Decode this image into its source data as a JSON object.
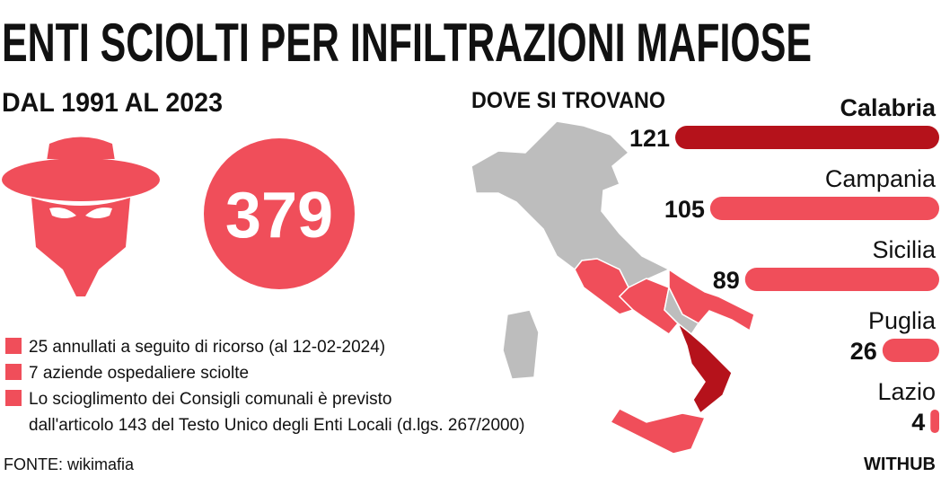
{
  "title": "ENTI SCIOLTI PER INFILTRAZIONI MAFIOSE",
  "subtitle": "DAL 1991 AL 2023",
  "total": "379",
  "map_title": "DOVE SI TROVANO",
  "notes": [
    [
      "25 annullati a seguito di ricorso (al 12-02-2024)"
    ],
    [
      "7 aziende ospedaliere sciolte"
    ],
    [
      "Lo scioglimento dei Consigli comunali è previsto",
      "dall'articolo 143 del Testo Unico degli Enti Locali (d.lgs. 267/2000)"
    ]
  ],
  "source": "FONTE: wikimafia",
  "brand": "WITHUB",
  "chart_data": {
    "type": "bar",
    "categories": [
      "Calabria",
      "Campania",
      "Sicilia",
      "Puglia",
      "Lazio"
    ],
    "values": [
      121,
      105,
      89,
      26,
      4
    ],
    "colors": [
      "#b5121b",
      "#f04e5a",
      "#f04e5a",
      "#f04e5a",
      "#f04e5a"
    ]
  }
}
